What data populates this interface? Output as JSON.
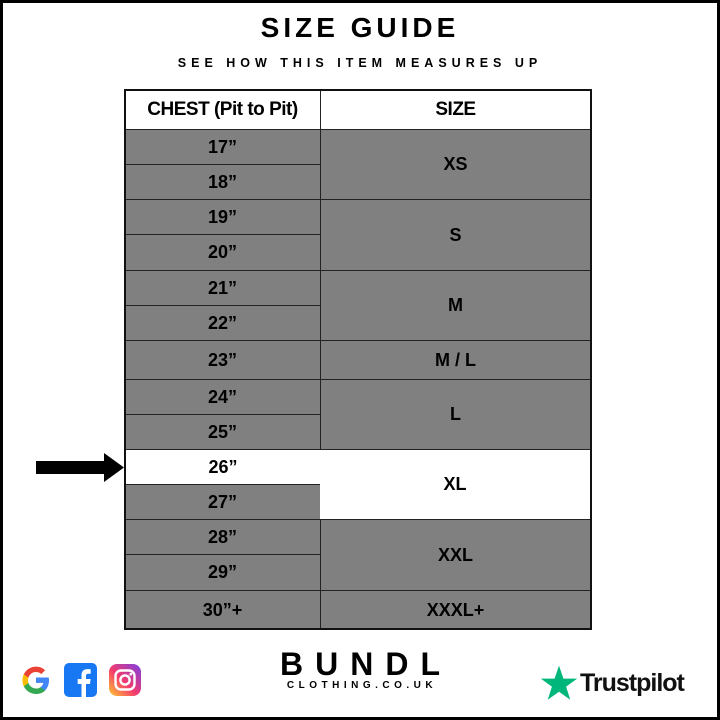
{
  "header": {
    "title": "SIZE GUIDE",
    "subtitle": "SEE HOW THIS ITEM MEASURES UP"
  },
  "table": {
    "columns": [
      "CHEST (Pit to Pit)",
      "SIZE"
    ],
    "chest": [
      "17”",
      "18”",
      "19”",
      "20”",
      "21”",
      "22”",
      "23”",
      "24”",
      "25”",
      "26”",
      "27”",
      "28”",
      "29”",
      "30”+"
    ],
    "sizes": [
      "XS",
      "S",
      "M",
      "M / L",
      "L",
      "XL",
      "XXL",
      "XXXL+"
    ],
    "highlighted_chest": "26”",
    "highlighted_size": "XL"
  },
  "colors": {
    "cell_gray": "#808080",
    "highlight": "#ffffff",
    "trustpilot_green": "#00b67a"
  },
  "footer": {
    "social_icons": [
      "google-icon",
      "facebook-icon",
      "instagram-icon"
    ],
    "brand": "BUNDL",
    "brand_sub": "CLOTHING.CO.UK",
    "trustpilot": "Trustpilot"
  }
}
